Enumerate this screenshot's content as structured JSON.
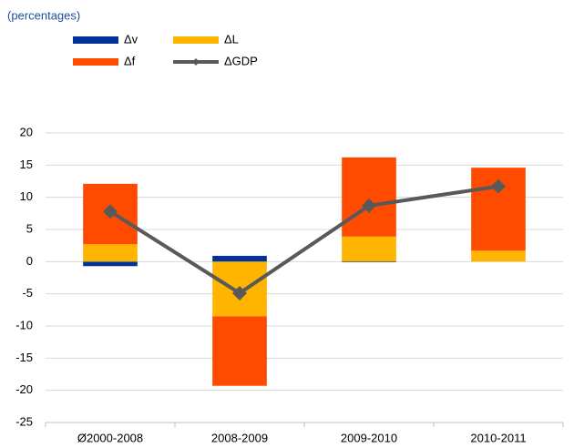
{
  "chart_data": {
    "type": "stacked_bar_line",
    "subtitle": "(percentages)",
    "categories": [
      "Ø2000-2008",
      "2008-2009",
      "2009-2010",
      "2010-2011"
    ],
    "series": [
      {
        "name": "Δv",
        "color": "#003299",
        "values": [
          -0.7,
          0.9,
          -0.1,
          0.0
        ]
      },
      {
        "name": "ΔL",
        "color": "#FFB400",
        "values": [
          2.7,
          -8.5,
          3.9,
          1.7
        ]
      },
      {
        "name": "Δf",
        "color": "#FF4B00",
        "values": [
          9.4,
          -10.8,
          12.3,
          12.9
        ]
      },
      {
        "name": "ΔGDP",
        "color": "#595959",
        "type": "line",
        "values": [
          7.8,
          -4.9,
          8.7,
          11.7
        ]
      }
    ],
    "ylim": [
      -25,
      20
    ],
    "yticks": [
      -25,
      -20,
      -15,
      -10,
      -5,
      0,
      5,
      10,
      15,
      20
    ],
    "grid": true,
    "legend": "top-left"
  }
}
